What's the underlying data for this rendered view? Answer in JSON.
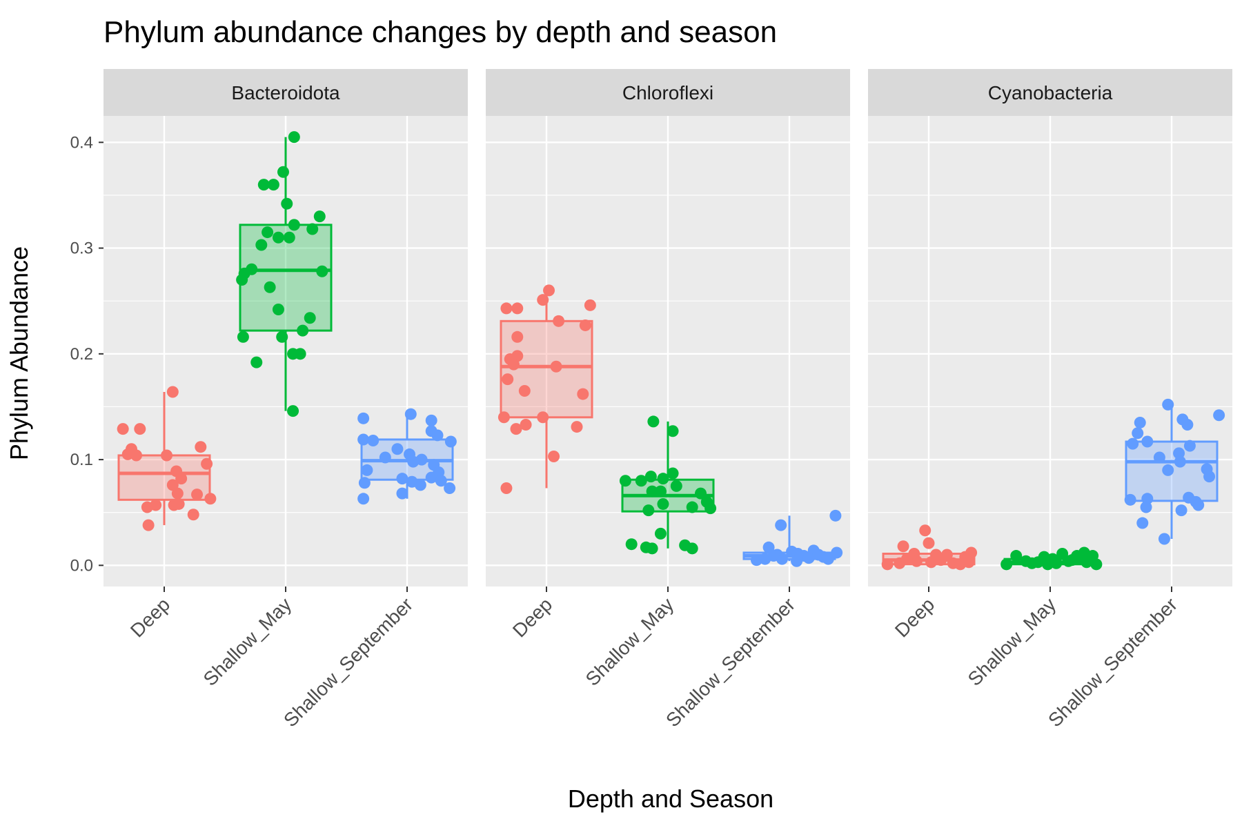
{
  "chart_data": {
    "type": "boxplot",
    "title": "Phylum abundance changes by depth and season",
    "xlabel": "Depth and Season",
    "ylabel": "Phylum Abundance",
    "categories": [
      "Deep",
      "Shallow_May",
      "Shallow_September"
    ],
    "yticks": [
      0.0,
      0.1,
      0.2,
      0.3,
      0.4
    ],
    "ytick_labels": [
      "0.0",
      "0.1",
      "0.2",
      "0.3",
      "0.4"
    ],
    "ylim": [
      -0.02,
      0.425
    ],
    "grid": true,
    "colors": {
      "Deep": "#f8766d",
      "Shallow_May": "#00ba38",
      "Shallow_September": "#619cff"
    },
    "panel_background": "#ebebeb",
    "strip_background": "#d9d9d9",
    "panels": [
      {
        "name": "Bacteroidota",
        "groups": [
          {
            "category": "Deep",
            "box": {
              "min": 0.038,
              "q1": 0.062,
              "median": 0.087,
              "q3": 0.104,
              "max": 0.164
            },
            "points": [
              [
                -0.34,
                0.129
              ],
              [
                -0.2,
                0.129
              ],
              [
                -0.27,
                0.11
              ],
              [
                -0.3,
                0.105
              ],
              [
                -0.23,
                0.104
              ],
              [
                0.02,
                0.104
              ],
              [
                0.3,
                0.112
              ],
              [
                0.35,
                0.096
              ],
              [
                0.1,
                0.089
              ],
              [
                0.14,
                0.082
              ],
              [
                0.07,
                0.076
              ],
              [
                0.11,
                0.068
              ],
              [
                -0.14,
                0.055
              ],
              [
                -0.07,
                0.057
              ],
              [
                0.08,
                0.057
              ],
              [
                0.12,
                0.058
              ],
              [
                0.27,
                0.067
              ],
              [
                0.38,
                0.063
              ],
              [
                -0.13,
                0.038
              ],
              [
                0.24,
                0.048
              ],
              [
                0.07,
                0.164
              ]
            ]
          },
          {
            "category": "Shallow_May",
            "box": {
              "min": 0.146,
              "q1": 0.222,
              "median": 0.279,
              "q3": 0.322,
              "max": 0.405
            },
            "points": [
              [
                0.07,
                0.405
              ],
              [
                -0.02,
                0.372
              ],
              [
                -0.18,
                0.36
              ],
              [
                -0.1,
                0.36
              ],
              [
                0.01,
                0.342
              ],
              [
                0.28,
                0.33
              ],
              [
                0.07,
                0.322
              ],
              [
                -0.15,
                0.315
              ],
              [
                0.22,
                0.318
              ],
              [
                -0.06,
                0.31
              ],
              [
                0.03,
                0.31
              ],
              [
                -0.2,
                0.303
              ],
              [
                -0.28,
                0.28
              ],
              [
                -0.34,
                0.276
              ],
              [
                -0.36,
                0.27
              ],
              [
                0.3,
                0.278
              ],
              [
                -0.13,
                0.263
              ],
              [
                -0.06,
                0.242
              ],
              [
                0.2,
                0.234
              ],
              [
                -0.35,
                0.216
              ],
              [
                -0.03,
                0.216
              ],
              [
                0.14,
                0.222
              ],
              [
                0.06,
                0.2
              ],
              [
                0.12,
                0.2
              ],
              [
                -0.24,
                0.192
              ],
              [
                0.06,
                0.146
              ]
            ]
          },
          {
            "category": "Shallow_September",
            "box": {
              "min": 0.063,
              "q1": 0.081,
              "median": 0.099,
              "q3": 0.119,
              "max": 0.143
            },
            "points": [
              [
                -0.36,
                0.139
              ],
              [
                0.03,
                0.143
              ],
              [
                0.2,
                0.137
              ],
              [
                0.25,
                0.123
              ],
              [
                0.2,
                0.127
              ],
              [
                0.36,
                0.117
              ],
              [
                -0.36,
                0.119
              ],
              [
                -0.28,
                0.118
              ],
              [
                -0.08,
                0.11
              ],
              [
                0.02,
                0.105
              ],
              [
                -0.18,
                0.102
              ],
              [
                0.12,
                0.1
              ],
              [
                0.05,
                0.098
              ],
              [
                -0.33,
                0.09
              ],
              [
                0.22,
                0.095
              ],
              [
                0.26,
                0.088
              ],
              [
                -0.04,
                0.082
              ],
              [
                0.2,
                0.083
              ],
              [
                0.04,
                0.079
              ],
              [
                0.11,
                0.076
              ],
              [
                -0.35,
                0.078
              ],
              [
                0.28,
                0.08
              ],
              [
                -0.04,
                0.068
              ],
              [
                0.35,
                0.073
              ],
              [
                -0.36,
                0.063
              ]
            ]
          }
        ]
      },
      {
        "name": "Chloroflexi",
        "groups": [
          {
            "category": "Deep",
            "box": {
              "min": 0.073,
              "q1": 0.14,
              "median": 0.188,
              "q3": 0.231,
              "max": 0.26
            },
            "points": [
              [
                0.02,
                0.26
              ],
              [
                -0.03,
                0.251
              ],
              [
                -0.33,
                0.243
              ],
              [
                -0.24,
                0.243
              ],
              [
                0.36,
                0.246
              ],
              [
                0.32,
                0.227
              ],
              [
                0.1,
                0.231
              ],
              [
                -0.24,
                0.216
              ],
              [
                -0.3,
                0.195
              ],
              [
                -0.24,
                0.198
              ],
              [
                -0.27,
                0.19
              ],
              [
                -0.32,
                0.176
              ],
              [
                0.08,
                0.188
              ],
              [
                -0.18,
                0.165
              ],
              [
                0.3,
                0.162
              ],
              [
                -0.35,
                0.14
              ],
              [
                -0.03,
                0.14
              ],
              [
                -0.17,
                0.133
              ],
              [
                -0.25,
                0.129
              ],
              [
                0.25,
                0.131
              ],
              [
                0.06,
                0.103
              ],
              [
                -0.33,
                0.073
              ]
            ]
          },
          {
            "category": "Shallow_May",
            "box": {
              "min": 0.016,
              "q1": 0.051,
              "median": 0.066,
              "q3": 0.081,
              "max": 0.136
            },
            "points": [
              [
                -0.12,
                0.136
              ],
              [
                0.04,
                0.127
              ],
              [
                -0.35,
                0.08
              ],
              [
                -0.22,
                0.08
              ],
              [
                -0.14,
                0.084
              ],
              [
                0.04,
                0.087
              ],
              [
                -0.04,
                0.082
              ],
              [
                0.07,
                0.075
              ],
              [
                -0.13,
                0.07
              ],
              [
                -0.06,
                0.07
              ],
              [
                0.27,
                0.068
              ],
              [
                0.32,
                0.06
              ],
              [
                0.35,
                0.054
              ],
              [
                -0.04,
                0.058
              ],
              [
                0.2,
                0.055
              ],
              [
                -0.16,
                0.052
              ],
              [
                -0.06,
                0.03
              ],
              [
                -0.3,
                0.02
              ],
              [
                -0.18,
                0.017
              ],
              [
                -0.13,
                0.016
              ],
              [
                0.14,
                0.019
              ],
              [
                0.2,
                0.016
              ]
            ]
          },
          {
            "category": "Shallow_September",
            "box": {
              "min": 0.004,
              "q1": 0.006,
              "median": 0.009,
              "q3": 0.012,
              "max": 0.047
            },
            "points": [
              [
                0.38,
                0.047
              ],
              [
                -0.07,
                0.038
              ],
              [
                -0.17,
                0.017
              ],
              [
                0.2,
                0.014
              ],
              [
                0.02,
                0.013
              ],
              [
                0.07,
                0.011
              ],
              [
                -0.1,
                0.01
              ],
              [
                0.12,
                0.009
              ],
              [
                0.28,
                0.008
              ],
              [
                0.39,
                0.012
              ],
              [
                -0.27,
                0.005
              ],
              [
                -0.2,
                0.006
              ],
              [
                -0.06,
                0.006
              ],
              [
                0.06,
                0.004
              ],
              [
                0.16,
                0.007
              ],
              [
                0.32,
                0.006
              ],
              [
                -0.13,
                0.009
              ],
              [
                0.24,
                0.01
              ]
            ]
          }
        ]
      },
      {
        "name": "Cyanobacteria",
        "groups": [
          {
            "category": "Deep",
            "box": {
              "min": 0.0,
              "q1": 0.001,
              "median": 0.005,
              "q3": 0.011,
              "max": 0.011
            },
            "points": [
              [
                -0.03,
                0.033
              ],
              [
                -0.21,
                0.018
              ],
              [
                0.0,
                0.021
              ],
              [
                -0.12,
                0.011
              ],
              [
                0.06,
                0.01
              ],
              [
                0.15,
                0.01
              ],
              [
                0.35,
                0.012
              ],
              [
                -0.34,
                0.001
              ],
              [
                -0.24,
                0.002
              ],
              [
                -0.1,
                0.004
              ],
              [
                0.02,
                0.003
              ],
              [
                0.1,
                0.005
              ],
              [
                0.2,
                0.002
              ],
              [
                0.26,
                0.001
              ],
              [
                0.33,
                0.003
              ],
              [
                -0.18,
                0.006
              ],
              [
                0.07,
                0.007
              ],
              [
                0.3,
                0.008
              ]
            ]
          },
          {
            "category": "Shallow_May",
            "box": {
              "min": 0.0,
              "q1": 0.001,
              "median": 0.003,
              "q3": 0.006,
              "max": 0.008
            },
            "points": [
              [
                -0.36,
                0.001
              ],
              [
                -0.28,
                0.009
              ],
              [
                -0.2,
                0.004
              ],
              [
                -0.1,
                0.003
              ],
              [
                -0.05,
                0.008
              ],
              [
                0.02,
                0.006
              ],
              [
                0.1,
                0.011
              ],
              [
                0.15,
                0.004
              ],
              [
                0.22,
                0.009
              ],
              [
                0.28,
                0.012
              ],
              [
                0.35,
                0.009
              ],
              [
                -0.15,
                0.002
              ],
              [
                0.05,
                0.002
              ],
              [
                0.3,
                0.003
              ],
              [
                0.38,
                0.001
              ],
              [
                -0.02,
                0.001
              ],
              [
                0.18,
                0.005
              ],
              [
                0.26,
                0.006
              ]
            ]
          },
          {
            "category": "Shallow_September",
            "box": {
              "min": 0.025,
              "q1": 0.061,
              "median": 0.098,
              "q3": 0.117,
              "max": 0.152
            },
            "points": [
              [
                -0.03,
                0.152
              ],
              [
                0.09,
                0.138
              ],
              [
                -0.26,
                0.135
              ],
              [
                -0.28,
                0.125
              ],
              [
                0.13,
                0.133
              ],
              [
                0.39,
                0.142
              ],
              [
                -0.32,
                0.115
              ],
              [
                -0.2,
                0.117
              ],
              [
                0.06,
                0.106
              ],
              [
                0.15,
                0.113
              ],
              [
                -0.1,
                0.102
              ],
              [
                0.07,
                0.098
              ],
              [
                0.29,
                0.091
              ],
              [
                -0.03,
                0.09
              ],
              [
                0.31,
                0.084
              ],
              [
                -0.34,
                0.062
              ],
              [
                -0.2,
                0.063
              ],
              [
                -0.21,
                0.055
              ],
              [
                0.14,
                0.064
              ],
              [
                0.2,
                0.06
              ],
              [
                0.22,
                0.057
              ],
              [
                0.08,
                0.052
              ],
              [
                -0.24,
                0.04
              ],
              [
                -0.06,
                0.025
              ]
            ]
          }
        ]
      }
    ]
  }
}
